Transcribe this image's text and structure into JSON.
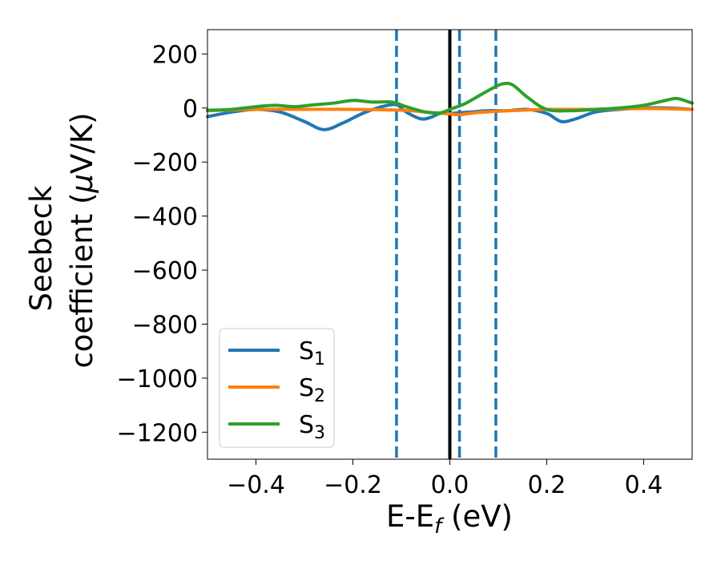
{
  "chart_data": {
    "type": "line",
    "xlabel": "E-E",
    "xlabel_sub": "f",
    "xlabel_unit": " (eV)",
    "ylabel_line1": "Seebeck",
    "ylabel_line2": "coefficient  (",
    "ylabel_mu": "μ",
    "ylabel_unit": "V/K)",
    "xlim": [
      -0.5,
      0.5
    ],
    "ylim": [
      -1300,
      290
    ],
    "xticks": [
      -0.4,
      -0.2,
      0.0,
      0.2,
      0.4
    ],
    "xtick_labels": [
      "−0.4",
      "−0.2",
      "0.0",
      "0.2",
      "0.4"
    ],
    "yticks": [
      200,
      0,
      -200,
      -400,
      -600,
      -800,
      -1000,
      -1200
    ],
    "ytick_labels": [
      "200",
      "0",
      "−200",
      "−400",
      "−600",
      "−800",
      "−1000",
      "−1200"
    ],
    "grid": false,
    "legend_position": "lower-left",
    "vlines": [
      {
        "x": 0.0,
        "style": "solid",
        "color": "#000000"
      },
      {
        "x": -0.11,
        "style": "dashed",
        "color": "#1f77b4"
      },
      {
        "x": 0.02,
        "style": "dashed",
        "color": "#1f77b4"
      },
      {
        "x": 0.095,
        "style": "dashed",
        "color": "#1f77b4"
      }
    ],
    "series": [
      {
        "name": "S",
        "sub": "1",
        "color": "#1f77b4",
        "x": [
          -0.5,
          -0.45,
          -0.4,
          -0.35,
          -0.3,
          -0.26,
          -0.22,
          -0.18,
          -0.14,
          -0.11,
          -0.09,
          -0.06,
          -0.04,
          -0.02,
          0.0,
          0.04,
          0.08,
          0.12,
          0.16,
          0.2,
          0.23,
          0.26,
          0.3,
          0.35,
          0.4,
          0.45,
          0.5
        ],
        "y": [
          -32,
          -15,
          -5,
          -15,
          -50,
          -80,
          -55,
          -20,
          5,
          12,
          -15,
          -40,
          -35,
          -20,
          -20,
          -15,
          -10,
          -10,
          -5,
          -20,
          -50,
          -40,
          -15,
          -5,
          0,
          0,
          -5
        ]
      },
      {
        "name": "S",
        "sub": "2",
        "color": "#ff7f0e",
        "x": [
          -0.5,
          -0.4,
          -0.3,
          -0.2,
          -0.1,
          -0.05,
          0.0,
          0.02,
          0.05,
          0.1,
          0.15,
          0.2,
          0.3,
          0.4,
          0.5
        ],
        "y": [
          -10,
          -5,
          -5,
          -5,
          -8,
          -15,
          -22,
          -25,
          -18,
          -12,
          -8,
          -5,
          -5,
          -2,
          -5
        ]
      },
      {
        "name": "S",
        "sub": "3",
        "color": "#2ca02c",
        "x": [
          -0.5,
          -0.45,
          -0.4,
          -0.36,
          -0.32,
          -0.28,
          -0.24,
          -0.2,
          -0.16,
          -0.12,
          -0.09,
          -0.05,
          -0.02,
          0.0,
          0.03,
          0.06,
          0.09,
          0.11,
          0.13,
          0.16,
          0.2,
          0.25,
          0.3,
          0.35,
          0.4,
          0.45,
          0.47,
          0.5
        ],
        "y": [
          -8,
          -5,
          5,
          10,
          5,
          12,
          18,
          28,
          22,
          22,
          5,
          -15,
          -18,
          -5,
          15,
          45,
          75,
          90,
          85,
          40,
          -5,
          -10,
          -5,
          0,
          10,
          30,
          35,
          18
        ]
      }
    ]
  }
}
